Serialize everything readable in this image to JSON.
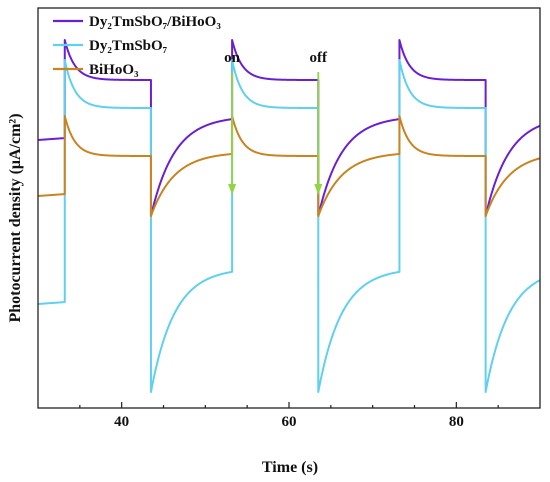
{
  "chart_data": {
    "type": "line",
    "xlabel": "Time (s)",
    "ylabel": "Photocurrent density (μA/cm²)",
    "xlim": [
      30,
      90
    ],
    "xticks": [
      40,
      60,
      80
    ],
    "ylim": [
      0,
      1
    ],
    "grid": false,
    "legend_position": "top-left",
    "series": [
      {
        "name": "Dy₂TmSbO₇/BiHoO₃",
        "color": "#6a1fd4",
        "baseline": 0.67,
        "on_level": 0.82,
        "peak": 0.92,
        "dip": 0.48,
        "recover": 0.73
      },
      {
        "name": "Dy₂TmSbO₇",
        "color": "#5fd0f0",
        "baseline": 0.26,
        "on_level": 0.75,
        "peak": 0.87,
        "dip": 0.04,
        "recover": 0.35
      },
      {
        "name": "BiHoO₃",
        "color": "#c98420",
        "baseline": 0.53,
        "on_level": 0.63,
        "peak": 0.73,
        "dip": 0.48,
        "recover": 0.64
      }
    ],
    "light_on_times": [
      33.2,
      53.2,
      73.2
    ],
    "light_off_times": [
      43.5,
      63.5,
      83.5
    ],
    "annotations": [
      {
        "text": "on",
        "time": 53.2
      },
      {
        "text": "off",
        "time": 63.5
      }
    ],
    "arrow_color": "#8fd640"
  }
}
